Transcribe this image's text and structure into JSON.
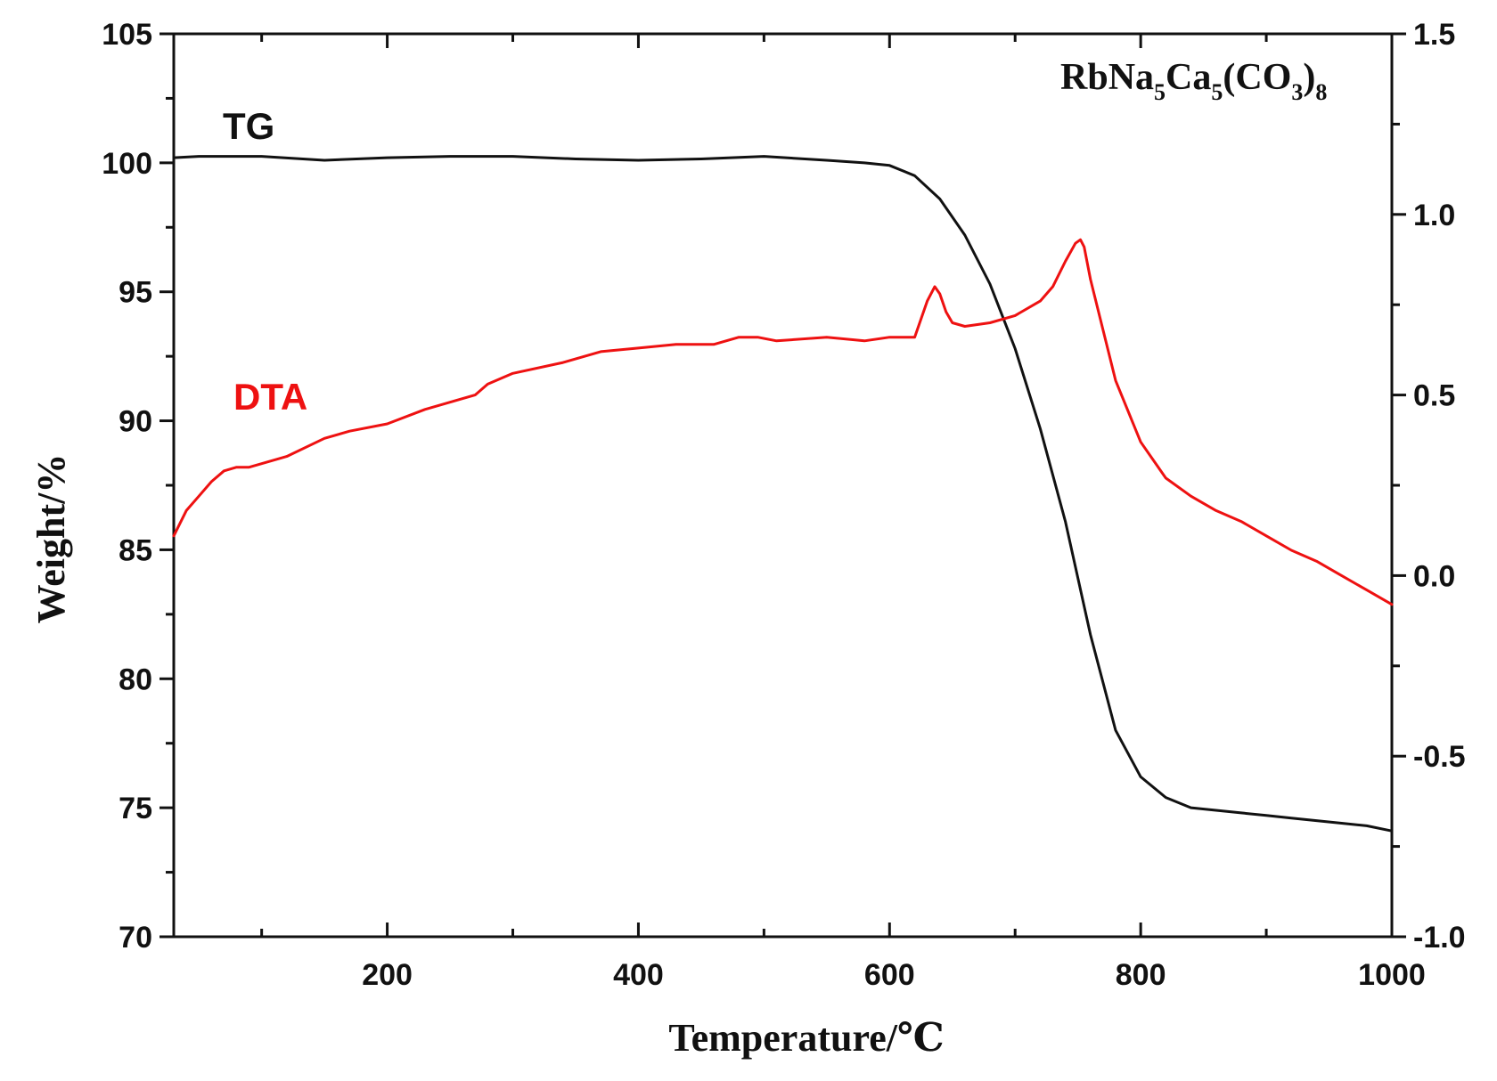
{
  "chart_data": {
    "type": "line",
    "title": "",
    "formula": {
      "parts": [
        "RbNa",
        "5",
        "Ca",
        "5",
        "(CO",
        "3",
        ")",
        "8"
      ],
      "subscript_flags": [
        false,
        true,
        false,
        true,
        false,
        true,
        false,
        true
      ]
    },
    "xlabel": "Temperature/℃",
    "ylabel": "Weight/%",
    "xlim": [
      30,
      1000
    ],
    "ylim_left": [
      70,
      105
    ],
    "ylim_right": [
      -1.0,
      1.5
    ],
    "x_ticks": [
      200,
      400,
      600,
      800,
      1000
    ],
    "x_tick_labels": [
      "200",
      "400",
      "600",
      "800",
      "1000"
    ],
    "x_minor_ticks": [
      100,
      300,
      500,
      700,
      900
    ],
    "y_left_ticks": [
      70,
      75,
      80,
      85,
      90,
      95,
      100,
      105
    ],
    "y_left_tick_labels": [
      "70",
      "75",
      "80",
      "85",
      "90",
      "95",
      "100",
      "105"
    ],
    "y_left_minor_ticks": [
      72.5,
      77.5,
      82.5,
      87.5,
      92.5,
      97.5,
      102.5
    ],
    "y_right_ticks": [
      -1.0,
      -0.5,
      0.0,
      0.5,
      1.0,
      1.5
    ],
    "y_right_tick_labels": [
      "-1.0",
      "-0.5",
      "0.0",
      "0.5",
      "1.0",
      "1.5"
    ],
    "y_right_minor_ticks": [
      -0.75,
      -0.25,
      0.25,
      0.75,
      1.25
    ],
    "series": [
      {
        "name": "TG",
        "axis": "left",
        "color": "#111111",
        "x": [
          30,
          50,
          100,
          150,
          200,
          250,
          300,
          350,
          400,
          450,
          500,
          550,
          580,
          600,
          620,
          640,
          660,
          680,
          700,
          720,
          740,
          760,
          780,
          800,
          820,
          840,
          860,
          880,
          900,
          920,
          940,
          960,
          980,
          1000
        ],
        "y": [
          100.2,
          100.25,
          100.25,
          100.1,
          100.2,
          100.25,
          100.25,
          100.15,
          100.1,
          100.15,
          100.25,
          100.1,
          100.0,
          99.9,
          99.5,
          98.6,
          97.2,
          95.3,
          92.8,
          89.7,
          86.1,
          81.7,
          78.0,
          76.2,
          75.4,
          75.0,
          74.9,
          74.8,
          74.7,
          74.6,
          74.5,
          74.4,
          74.3,
          74.1
        ]
      },
      {
        "name": "DTA",
        "axis": "right",
        "color": "#ee1111",
        "x": [
          30,
          40,
          50,
          60,
          70,
          80,
          90,
          100,
          120,
          150,
          170,
          200,
          230,
          250,
          270,
          280,
          300,
          340,
          370,
          400,
          430,
          460,
          480,
          495,
          510,
          550,
          580,
          600,
          620,
          630,
          636,
          640,
          645,
          650,
          660,
          680,
          700,
          720,
          730,
          740,
          748,
          752,
          755,
          760,
          770,
          780,
          800,
          820,
          840,
          860,
          880,
          900,
          920,
          940,
          960,
          980,
          1000
        ],
        "y": [
          0.11,
          0.18,
          0.22,
          0.26,
          0.29,
          0.3,
          0.3,
          0.31,
          0.33,
          0.38,
          0.4,
          0.42,
          0.46,
          0.48,
          0.5,
          0.53,
          0.56,
          0.59,
          0.62,
          0.63,
          0.64,
          0.64,
          0.66,
          0.66,
          0.65,
          0.66,
          0.65,
          0.66,
          0.66,
          0.76,
          0.8,
          0.78,
          0.73,
          0.7,
          0.69,
          0.7,
          0.72,
          0.76,
          0.8,
          0.87,
          0.92,
          0.93,
          0.91,
          0.82,
          0.68,
          0.54,
          0.37,
          0.27,
          0.22,
          0.18,
          0.15,
          0.11,
          0.07,
          0.04,
          0.0,
          -0.04,
          -0.08
        ]
      }
    ]
  }
}
